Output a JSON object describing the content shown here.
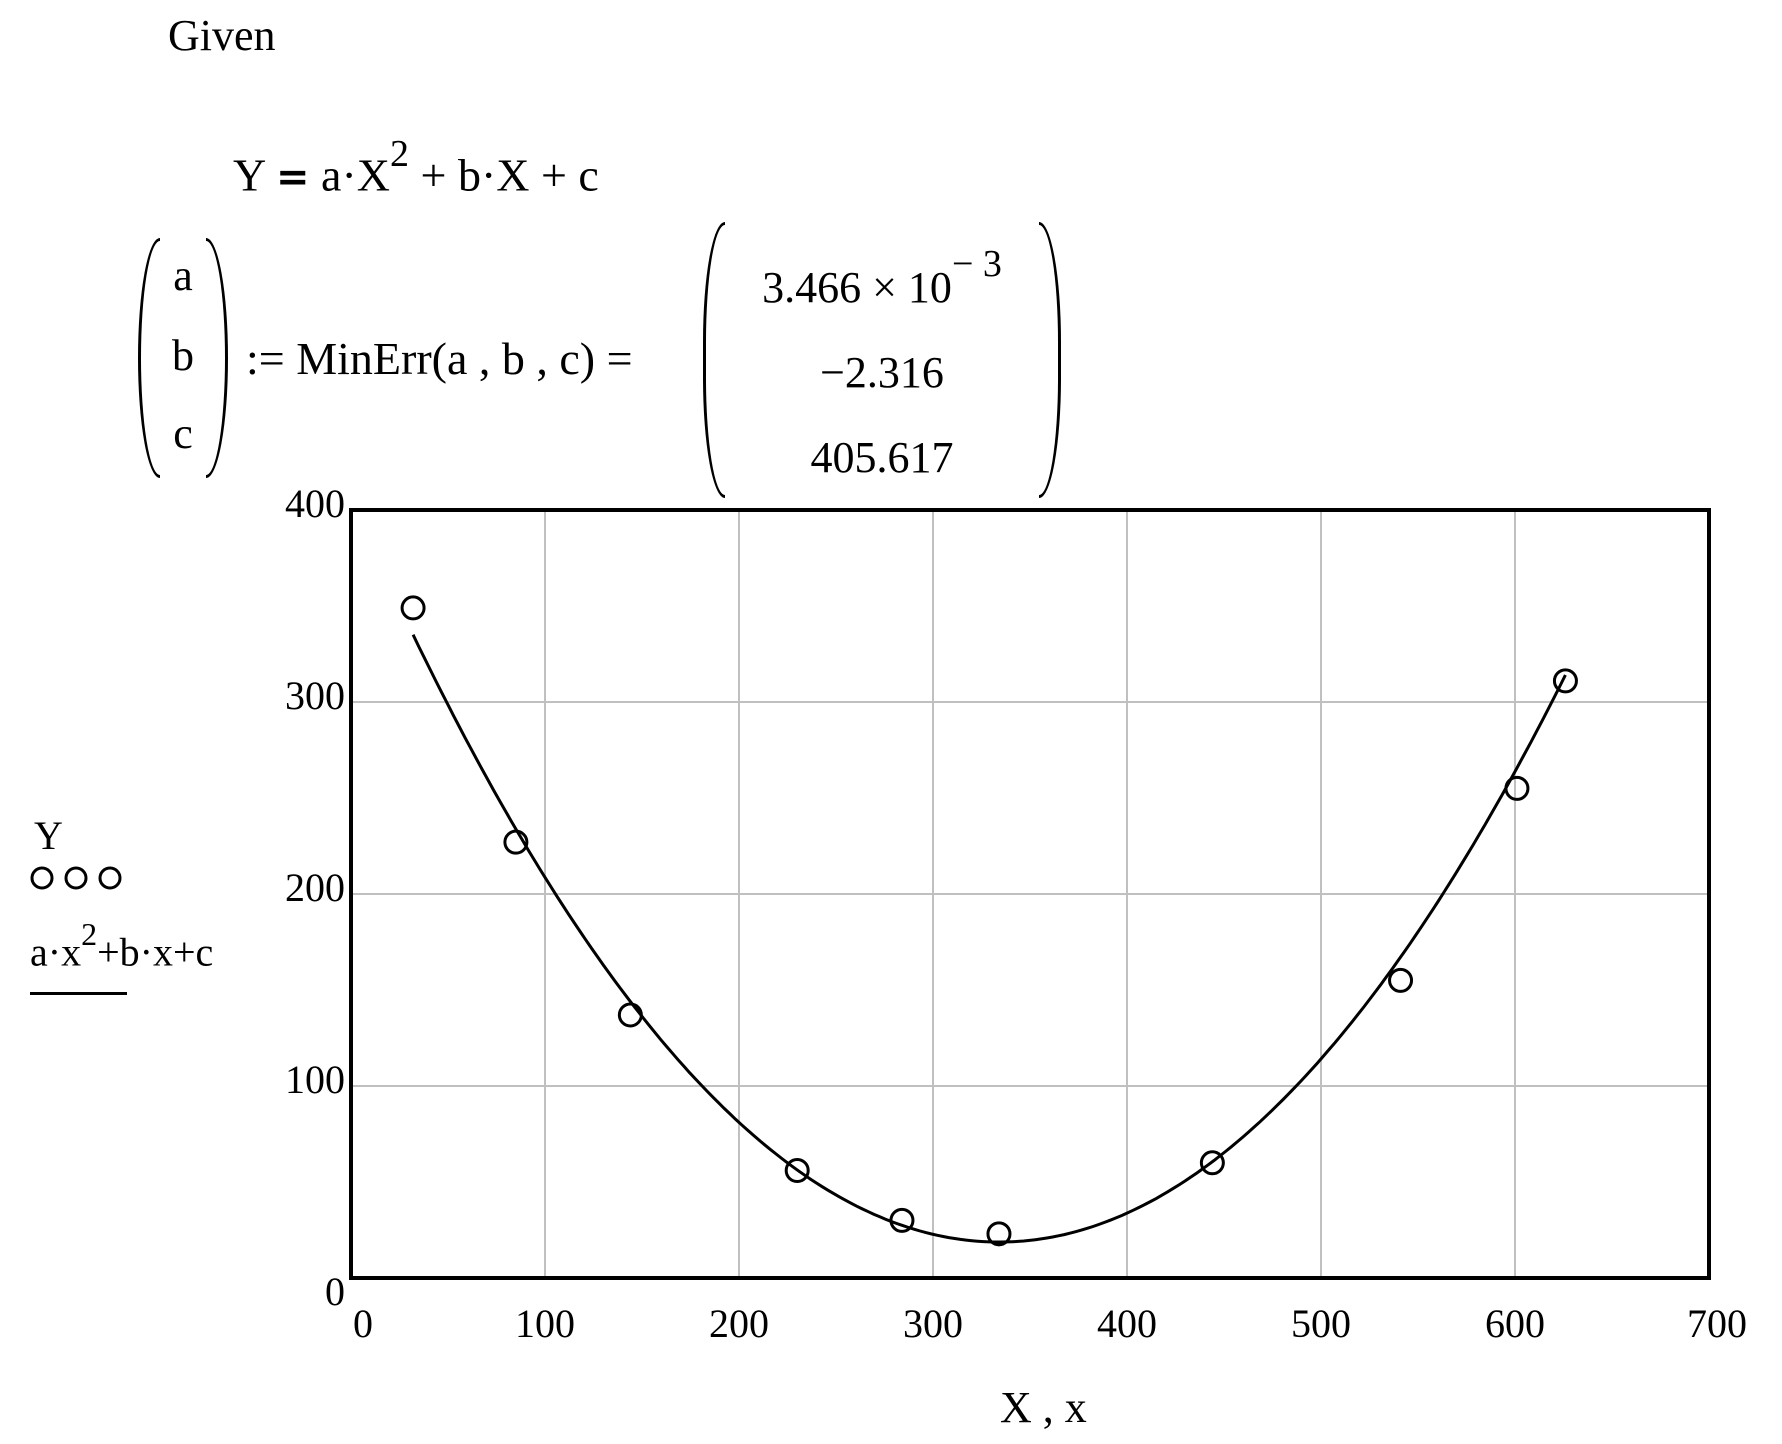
{
  "document": {
    "given_label": "Given",
    "constraint": {
      "lhs": "Y",
      "operator": "=",
      "rhs_a": "a·X",
      "rhs_exp": "2",
      "rhs_rest": " + b·X + c"
    },
    "solve": {
      "lhs_vector": [
        "a",
        "b",
        "c"
      ],
      "assign_expr": ":= MinErr(a , b , c) =",
      "result_vector": {
        "a_mantissa": "3.466 × 10",
        "a_exponent": "− 3",
        "b": "−2.316",
        "c": "405.617"
      }
    }
  },
  "legend": {
    "series1_name": "Y",
    "series1_marker": "○○○",
    "series2_formula_a": "a·x",
    "series2_formula_exp": "2",
    "series2_formula_rest": "+b·x+c"
  },
  "chart_data": {
    "type": "scatter",
    "title": "",
    "xlabel": "X , x",
    "ylabel": "Y ; a·x^2+b·x+c",
    "xlim": [
      0,
      700
    ],
    "ylim": [
      0,
      400
    ],
    "xticks": [
      "0",
      "100",
      "200",
      "300",
      "400",
      "500",
      "600",
      "700"
    ],
    "yticks": [
      "0",
      "100",
      "200",
      "300",
      "400"
    ],
    "grid": true,
    "legend_position": "left",
    "series": [
      {
        "name": "Y",
        "style": "markers-open-circle",
        "x": [
          32,
          85,
          144,
          230,
          284,
          334,
          444,
          541,
          601,
          626
        ],
        "y": [
          349,
          227,
          137,
          56,
          30,
          23,
          60,
          155,
          255,
          311
        ]
      },
      {
        "name": "a·x^2+b·x+c",
        "style": "solid-line",
        "fit": {
          "a": 0.003466,
          "b": -2.316,
          "c": 405.617
        },
        "x_range": [
          32,
          626
        ]
      }
    ]
  }
}
